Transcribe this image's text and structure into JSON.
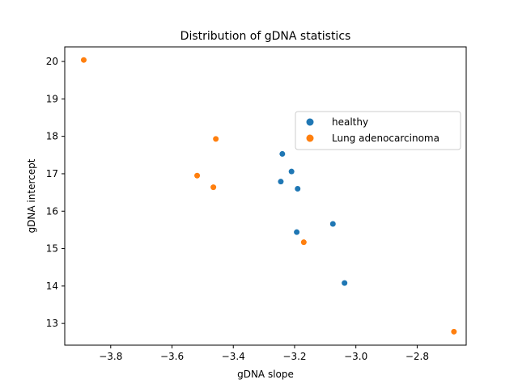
{
  "chart_data": {
    "type": "scatter",
    "title": "Distribution of gDNA statistics",
    "xlabel": "gDNA slope",
    "ylabel": "gDNA intercept",
    "xlim": [
      -3.95,
      -2.64
    ],
    "ylim": [
      12.42,
      20.39
    ],
    "xticks": [
      -3.8,
      -3.6,
      -3.4,
      -3.2,
      -3.0,
      -2.8
    ],
    "xtick_labels": [
      "−3.8",
      "−3.6",
      "−3.4",
      "−3.2",
      "−3.0",
      "−2.8"
    ],
    "yticks": [
      13,
      14,
      15,
      16,
      17,
      18,
      19,
      20
    ],
    "ytick_labels": [
      "13",
      "14",
      "15",
      "16",
      "17",
      "18",
      "19",
      "20"
    ],
    "grid": false,
    "legend_position": "right",
    "series": [
      {
        "name": "healthy",
        "color": "#1f77b4",
        "points": [
          {
            "x": -3.24,
            "y": 17.53
          },
          {
            "x": -3.21,
            "y": 17.06
          },
          {
            "x": -3.245,
            "y": 16.79
          },
          {
            "x": -3.19,
            "y": 16.6
          },
          {
            "x": -3.075,
            "y": 15.66
          },
          {
            "x": -3.193,
            "y": 15.44
          },
          {
            "x": -3.037,
            "y": 14.08
          }
        ]
      },
      {
        "name": "Lung adenocarcinoma",
        "color": "#ff7f0e",
        "points": [
          {
            "x": -3.888,
            "y": 20.04
          },
          {
            "x": -3.457,
            "y": 17.93
          },
          {
            "x": -3.518,
            "y": 16.95
          },
          {
            "x": -3.465,
            "y": 16.64
          },
          {
            "x": -3.17,
            "y": 15.17
          },
          {
            "x": -2.68,
            "y": 12.78
          }
        ]
      }
    ]
  }
}
